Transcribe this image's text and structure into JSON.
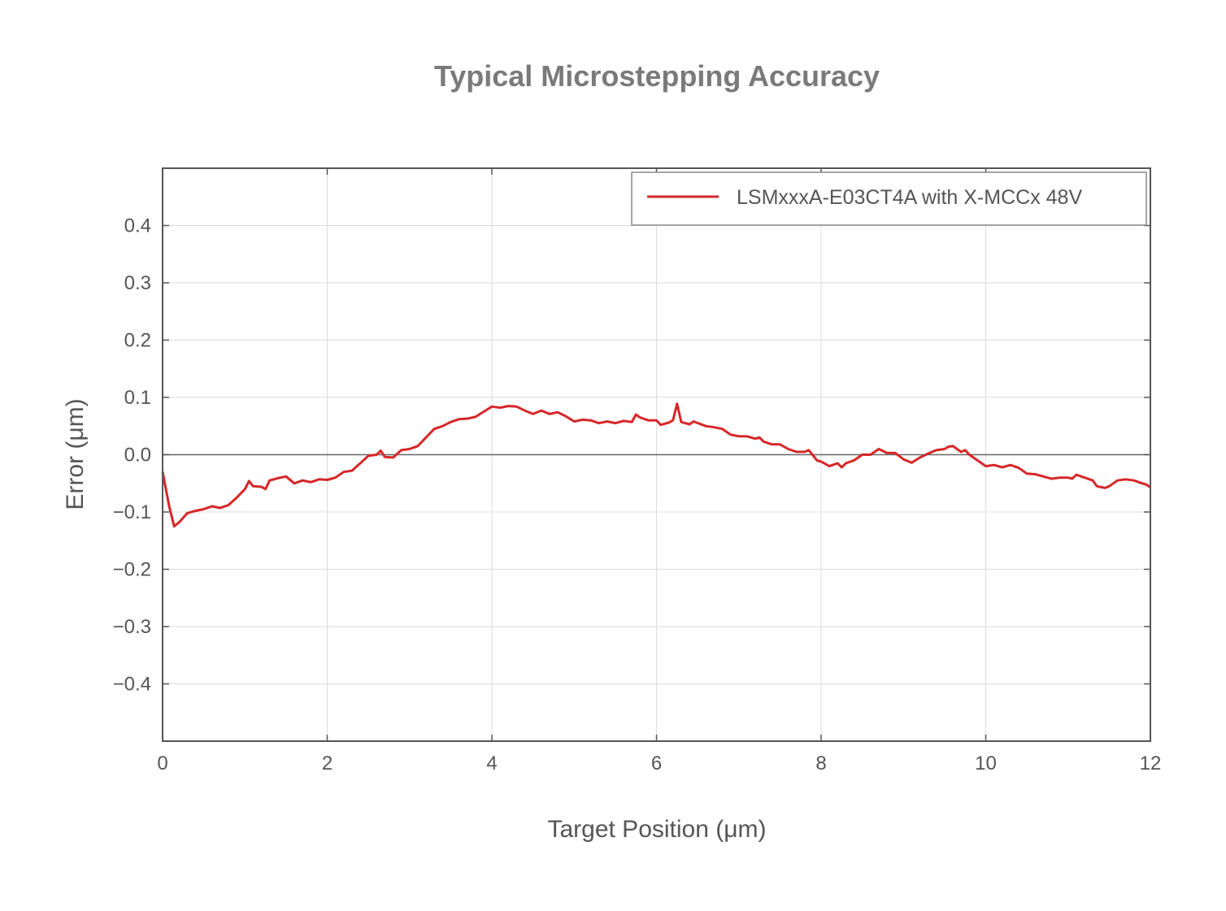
{
  "chart_data": {
    "type": "line",
    "title": "Typical Microstepping Accuracy",
    "xlabel": "Target Position (μm)",
    "ylabel": "Error (μm)",
    "xlim": [
      0,
      12
    ],
    "ylim": [
      -0.5,
      0.5
    ],
    "xticks": [
      0,
      2,
      4,
      6,
      8,
      10,
      12
    ],
    "xtick_labels": [
      "0",
      "2",
      "4",
      "6",
      "8",
      "10",
      "12"
    ],
    "yticks": [
      0.4,
      0.3,
      0.2,
      0.1,
      0.0,
      -0.1,
      -0.2,
      -0.3,
      -0.4
    ],
    "ytick_labels": [
      "0.4",
      "0.3",
      "0.2",
      "0.1",
      "0.0",
      "−0.1",
      "−0.2",
      "−0.3",
      "−0.4"
    ],
    "grid": true,
    "zero_line": true,
    "legend_position": "top-right",
    "series": [
      {
        "name": "LSMxxxA-E03CT4A with X-MCCx 48V",
        "color": "#d62728",
        "x": [
          0.0,
          0.08,
          0.14,
          0.2,
          0.3,
          0.4,
          0.5,
          0.6,
          0.7,
          0.8,
          0.9,
          1.0,
          1.05,
          1.1,
          1.2,
          1.25,
          1.3,
          1.4,
          1.5,
          1.6,
          1.7,
          1.8,
          1.9,
          2.0,
          2.1,
          2.2,
          2.3,
          2.4,
          2.5,
          2.6,
          2.65,
          2.7,
          2.8,
          2.9,
          3.0,
          3.1,
          3.2,
          3.3,
          3.4,
          3.5,
          3.6,
          3.7,
          3.8,
          3.9,
          4.0,
          4.1,
          4.2,
          4.3,
          4.4,
          4.5,
          4.6,
          4.7,
          4.8,
          4.9,
          5.0,
          5.1,
          5.2,
          5.3,
          5.4,
          5.5,
          5.6,
          5.7,
          5.75,
          5.8,
          5.9,
          6.0,
          6.05,
          6.15,
          6.2,
          6.25,
          6.3,
          6.4,
          6.45,
          6.6,
          6.7,
          6.8,
          6.9,
          7.0,
          7.1,
          7.2,
          7.25,
          7.3,
          7.4,
          7.5,
          7.6,
          7.7,
          7.8,
          7.85,
          7.95,
          8.0,
          8.1,
          8.2,
          8.25,
          8.3,
          8.4,
          8.5,
          8.6,
          8.7,
          8.8,
          8.9,
          9.0,
          9.1,
          9.2,
          9.3,
          9.4,
          9.5,
          9.55,
          9.6,
          9.7,
          9.75,
          9.8,
          9.9,
          10.0,
          10.1,
          10.2,
          10.3,
          10.4,
          10.5,
          10.6,
          10.7,
          10.8,
          10.9,
          11.0,
          11.05,
          11.1,
          11.2,
          11.3,
          11.35,
          11.45,
          11.5,
          11.6,
          11.7,
          11.8,
          11.9,
          11.95,
          12.0
        ],
        "y": [
          -0.03,
          -0.09,
          -0.125,
          -0.118,
          -0.102,
          -0.098,
          -0.095,
          -0.09,
          -0.093,
          -0.088,
          -0.075,
          -0.06,
          -0.046,
          -0.055,
          -0.056,
          -0.06,
          -0.045,
          -0.041,
          -0.038,
          -0.05,
          -0.045,
          -0.048,
          -0.043,
          -0.044,
          -0.04,
          -0.03,
          -0.028,
          -0.015,
          -0.002,
          0.0,
          0.007,
          -0.004,
          -0.005,
          0.008,
          0.01,
          0.015,
          0.03,
          0.045,
          0.05,
          0.057,
          0.062,
          0.063,
          0.066,
          0.075,
          0.084,
          0.082,
          0.085,
          0.084,
          0.077,
          0.071,
          0.077,
          0.071,
          0.074,
          0.067,
          0.058,
          0.061,
          0.06,
          0.055,
          0.058,
          0.055,
          0.059,
          0.057,
          0.07,
          0.065,
          0.06,
          0.06,
          0.052,
          0.056,
          0.06,
          0.089,
          0.057,
          0.053,
          0.058,
          0.05,
          0.048,
          0.045,
          0.035,
          0.032,
          0.032,
          0.028,
          0.03,
          0.023,
          0.018,
          0.018,
          0.01,
          0.005,
          0.005,
          0.008,
          -0.01,
          -0.012,
          -0.02,
          -0.015,
          -0.022,
          -0.015,
          -0.01,
          0.0,
          0.0,
          0.01,
          0.003,
          0.003,
          -0.008,
          -0.014,
          -0.005,
          0.002,
          0.008,
          0.01,
          0.014,
          0.015,
          0.005,
          0.008,
          0.0,
          -0.01,
          -0.02,
          -0.018,
          -0.022,
          -0.018,
          -0.023,
          -0.033,
          -0.034,
          -0.038,
          -0.042,
          -0.04,
          -0.04,
          -0.042,
          -0.035,
          -0.04,
          -0.045,
          -0.055,
          -0.058,
          -0.055,
          -0.045,
          -0.043,
          -0.045,
          -0.05,
          -0.052,
          -0.057
        ]
      }
    ]
  }
}
